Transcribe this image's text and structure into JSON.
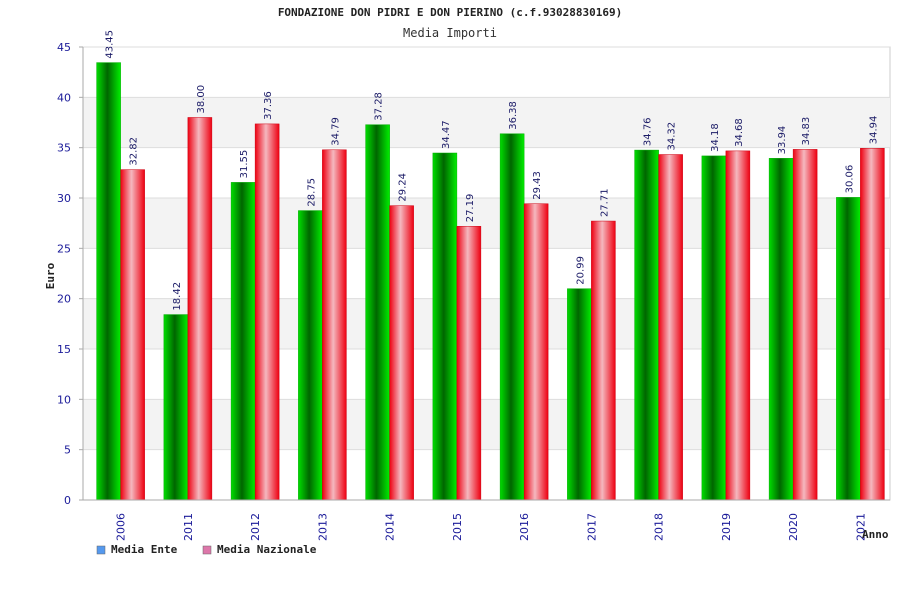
{
  "chart_data": {
    "type": "bar",
    "title": "FONDAZIONE DON PIDRI E DON PIERINO (c.f.93028830169)",
    "subtitle": "Media Importi",
    "ylabel": "Euro",
    "xlabel": "Anno",
    "ylim": [
      0,
      45
    ],
    "yticks": [
      0,
      5,
      10,
      15,
      20,
      25,
      30,
      35,
      40,
      45
    ],
    "grid": true,
    "legend_position": "bottom-left",
    "categories": [
      "2006",
      "2011",
      "2012",
      "2013",
      "2014",
      "2015",
      "2016",
      "2017",
      "2018",
      "2019",
      "2020",
      "2021"
    ],
    "series": [
      {
        "name": "Media Ente",
        "color": "#00aa00",
        "legend_color": "#5599ee",
        "values": [
          43.45,
          18.42,
          31.55,
          28.75,
          37.28,
          34.47,
          36.38,
          20.99,
          34.76,
          34.18,
          33.94,
          30.06
        ],
        "labels": [
          "43.45",
          "18.42",
          "31.55",
          "28.75",
          "37.28",
          "34.47",
          "36.38",
          "20.99",
          "34.76",
          "34.18",
          "33.94",
          "30.06"
        ]
      },
      {
        "name": "Media Nazionale",
        "color": "#ee1122",
        "legend_color": "#dd77aa",
        "values": [
          32.82,
          38.0,
          37.36,
          34.79,
          29.24,
          27.19,
          29.43,
          27.71,
          34.32,
          34.68,
          34.83,
          34.94
        ],
        "labels": [
          "32.82",
          "38.00",
          "37.36",
          "34.79",
          "29.24",
          "27.19",
          "29.43",
          "27.71",
          "34.32",
          "34.68",
          "34.83",
          "34.94"
        ]
      }
    ]
  }
}
